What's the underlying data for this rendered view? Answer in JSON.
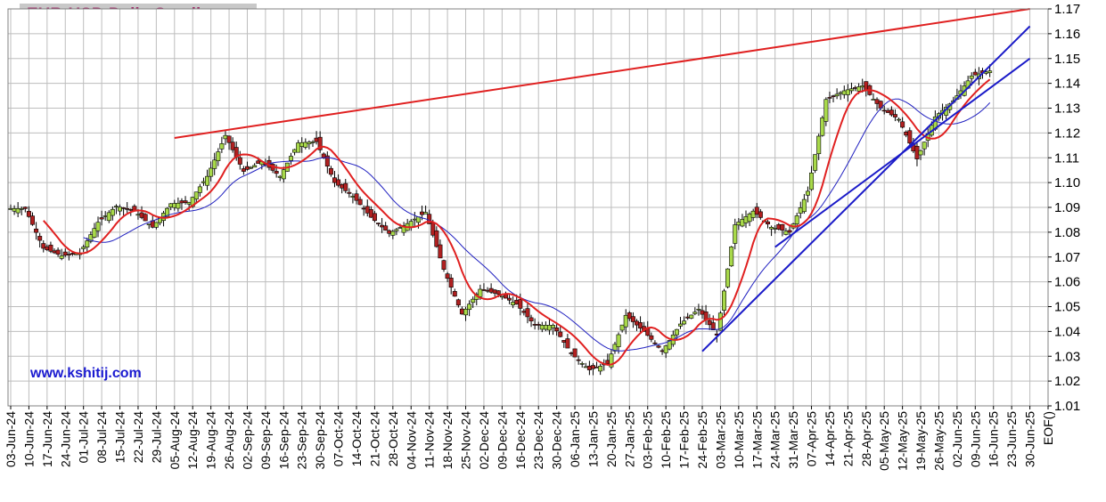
{
  "title": "EUR-USD Daily  Candles",
  "website": "www.kshitij.com",
  "colors": {
    "grid": "#bdbdbd",
    "frame": "#808080",
    "up_candle": "#a8d94a",
    "down_candle": "#b02020",
    "wick": "#000000",
    "ma_fast": "#e02020",
    "ma_slow": "#2020c0",
    "trend_red": "#e02020",
    "trend_blue": "#1a1ac8",
    "title_bg": "#c8c8c8",
    "title_text": "#a0306a",
    "website_text": "#1a1ad0"
  },
  "chart_data": {
    "type": "candlestick",
    "title": "EUR-USD Daily  Candles",
    "ylim": [
      1.01,
      1.17
    ],
    "y_ticks": [
      "1.17",
      "1.16",
      "1.15",
      "1.14",
      "1.13",
      "1.12",
      "1.11",
      "1.10",
      "1.09",
      "1.08",
      "1.07",
      "1.06",
      "1.05",
      "1.04",
      "1.03",
      "1.02",
      "1.01"
    ],
    "x_labels": [
      "03-Jun-24",
      "10-Jun-24",
      "17-Jun-24",
      "24-Jun-24",
      "01-Jul-24",
      "08-Jul-24",
      "15-Jul-24",
      "22-Jul-24",
      "29-Jul-24",
      "05-Aug-24",
      "12-Aug-24",
      "19-Aug-24",
      "26-Aug-24",
      "02-Sep-24",
      "09-Sep-24",
      "16-Sep-24",
      "23-Sep-24",
      "30-Sep-24",
      "07-Oct-24",
      "14-Oct-24",
      "21-Oct-24",
      "28-Oct-24",
      "04-Nov-24",
      "11-Nov-24",
      "18-Nov-24",
      "25-Nov-24",
      "02-Dec-24",
      "09-Dec-24",
      "16-Dec-24",
      "23-Dec-24",
      "30-Dec-24",
      "06-Jan-25",
      "13-Jan-25",
      "20-Jan-25",
      "27-Jan-25",
      "03-Feb-25",
      "10-Feb-25",
      "17-Feb-25",
      "24-Feb-25",
      "03-Mar-25",
      "10-Mar-25",
      "17-Mar-25",
      "24-Mar-25",
      "31-Mar-25",
      "07-Apr-25",
      "14-Apr-25",
      "21-Apr-25",
      "28-Apr-25",
      "05-May-25",
      "12-May-25",
      "19-May-25",
      "26-May-25",
      "02-Jun-25",
      "09-Jun-25",
      "16-Jun-25",
      "23-Jun-25",
      "30-Jun-25",
      "EOF()"
    ],
    "weekly_closes": [
      1.0895,
      1.0735,
      1.0705,
      1.0715,
      1.084,
      1.0905,
      1.0885,
      1.082,
      1.0915,
      1.092,
      1.1025,
      1.119,
      1.1045,
      1.1085,
      1.1025,
      1.116,
      1.1165,
      1.1,
      1.0945,
      1.086,
      1.0795,
      1.0835,
      1.088,
      1.065,
      1.047,
      1.057,
      1.055,
      1.051,
      1.0425,
      1.0425,
      1.031,
      1.0245,
      1.027,
      1.0465,
      1.04,
      1.032,
      1.043,
      1.049,
      1.0385,
      1.083,
      1.0885,
      1.082,
      1.08,
      1.0965,
      1.1335,
      1.137,
      1.139,
      1.13,
      1.1255,
      1.1095,
      1.1265,
      1.133,
      1.143,
      1.145
    ],
    "candles_per_week": 5,
    "moving_averages": [
      {
        "name": "fast MA",
        "color": "#e02020"
      },
      {
        "name": "slow MA",
        "color": "#2020c0"
      }
    ],
    "trendlines": [
      {
        "color": "#e02020",
        "from": {
          "date": "05-Aug-24",
          "price": 1.118
        },
        "to": {
          "date": "30-Jun-25",
          "price": 1.17
        }
      },
      {
        "color": "#1a1ac8",
        "from": {
          "date": "24-Feb-25",
          "price": 1.032
        },
        "to": {
          "date": "30-Jun-25",
          "price": 1.163
        }
      },
      {
        "color": "#1a1ac8",
        "from": {
          "date": "24-Mar-25",
          "price": 1.074
        },
        "to": {
          "date": "30-Jun-25",
          "price": 1.15
        }
      }
    ]
  }
}
